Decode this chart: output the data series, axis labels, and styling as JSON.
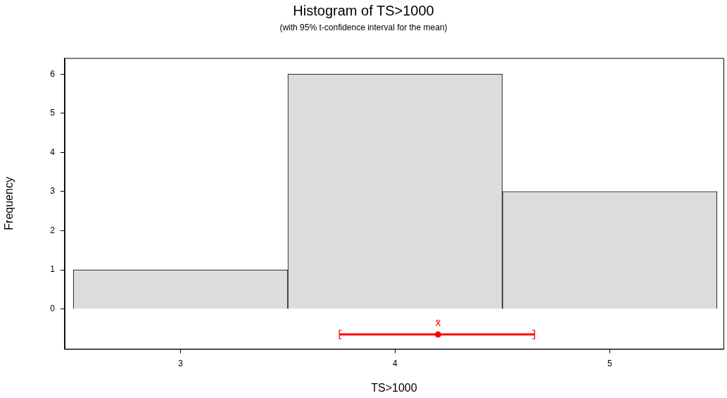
{
  "chart_data": {
    "type": "histogram",
    "title": "Histogram of TS>1000",
    "subtitle": "(with 95% t-confidence interval for the mean)",
    "xlabel": "TS>1000",
    "ylabel": "Frequency",
    "bins": [
      2.5,
      3.5,
      4.5,
      5.5
    ],
    "values": [
      1,
      6,
      3
    ],
    "color": "#dcdcdc",
    "series": [
      {
        "type": "scatter",
        "color": "#ff0000",
        "x": [
          4.2
        ],
        "values": [
          -0.65
        ],
        "xerrors": [
          [
            3.74,
            4.65
          ]
        ]
      }
    ],
    "annotations": [
      {
        "text": "x̄",
        "x": 4.2,
        "y": -0.65
      }
    ],
    "xlim": [
      2.46,
      5.53
    ],
    "xticks": [
      3,
      4,
      5
    ],
    "ylim": [
      -1.02,
      6.41
    ],
    "yticks": [
      0,
      1,
      2,
      3,
      4,
      5,
      6
    ],
    "grid": false,
    "legend": false,
    "marker": "circle"
  }
}
